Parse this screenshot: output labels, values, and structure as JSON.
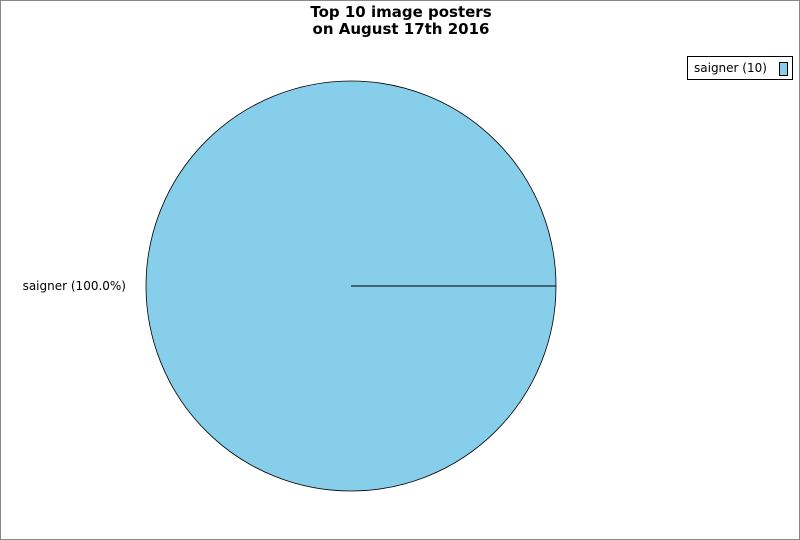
{
  "chart_data": {
    "type": "pie",
    "title_lines": [
      "Top 10 image posters",
      "on August 17th 2016"
    ],
    "slices": [
      {
        "name": "saigner",
        "value": 10,
        "percent": 100.0,
        "label": "saigner (100.0%)",
        "legend": "saigner (10)",
        "color": "#87CEEB"
      }
    ],
    "legend_placement": "top-right"
  }
}
